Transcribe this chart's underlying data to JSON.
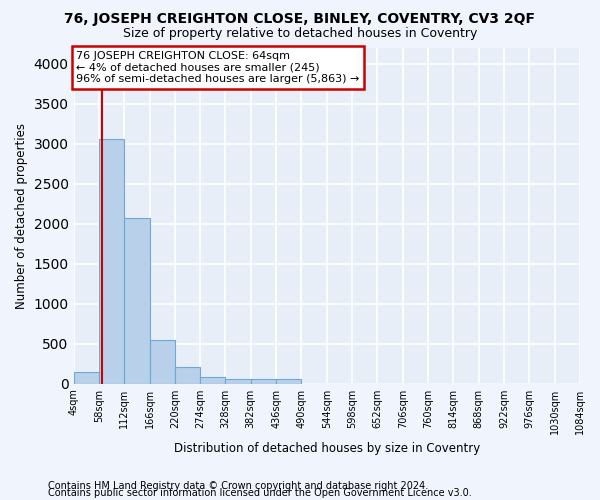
{
  "title": "76, JOSEPH CREIGHTON CLOSE, BINLEY, COVENTRY, CV3 2QF",
  "subtitle": "Size of property relative to detached houses in Coventry",
  "xlabel": "Distribution of detached houses by size in Coventry",
  "ylabel": "Number of detached properties",
  "bar_color": "#b8d0ea",
  "bar_edge_color": "#6aaad4",
  "bar_left_edges": [
    4,
    58,
    112,
    166,
    220,
    274,
    328,
    382,
    436,
    490,
    544,
    598,
    652,
    706,
    760,
    814,
    868,
    922,
    976,
    1030
  ],
  "bar_heights": [
    140,
    3060,
    2070,
    550,
    205,
    80,
    60,
    55,
    55,
    0,
    0,
    0,
    0,
    0,
    0,
    0,
    0,
    0,
    0,
    0
  ],
  "bin_width": 54,
  "tick_labels": [
    "4sqm",
    "58sqm",
    "112sqm",
    "166sqm",
    "220sqm",
    "274sqm",
    "328sqm",
    "382sqm",
    "436sqm",
    "490sqm",
    "544sqm",
    "598sqm",
    "652sqm",
    "706sqm",
    "760sqm",
    "814sqm",
    "868sqm",
    "922sqm",
    "976sqm",
    "1030sqm",
    "1084sqm"
  ],
  "vline_x": 64,
  "vline_color": "#cc0000",
  "annotation_line1": "76 JOSEPH CREIGHTON CLOSE: 64sqm",
  "annotation_line2": "← 4% of detached houses are smaller (245)",
  "annotation_line3": "96% of semi-detached houses are larger (5,863) →",
  "annotation_box_edge": "#cc0000",
  "ylim": [
    0,
    4200
  ],
  "yticks": [
    0,
    500,
    1000,
    1500,
    2000,
    2500,
    3000,
    3500,
    4000
  ],
  "footnote1": "Contains HM Land Registry data © Crown copyright and database right 2024.",
  "footnote2": "Contains public sector information licensed under the Open Government Licence v3.0.",
  "bg_color": "#f0f4fc",
  "plot_bg_color": "#e8eef8",
  "grid_color": "#ffffff",
  "title_fontsize": 10,
  "subtitle_fontsize": 9,
  "axis_label_fontsize": 8.5,
  "tick_fontsize": 7,
  "footnote_fontsize": 7,
  "annotation_fontsize": 8
}
